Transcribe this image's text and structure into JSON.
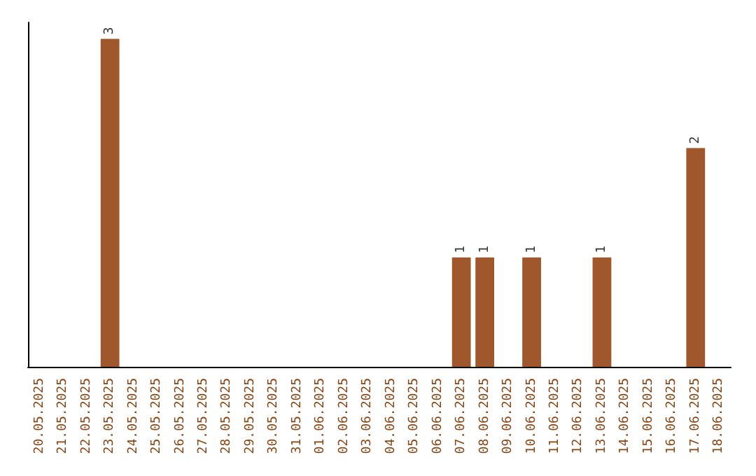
{
  "chart_data": {
    "type": "bar",
    "categories": [
      "20.05.2025",
      "21.05.2025",
      "22.05.2025",
      "23.05.2025",
      "24.05.2025",
      "25.05.2025",
      "26.05.2025",
      "27.05.2025",
      "28.05.2025",
      "29.05.2025",
      "30.05.2025",
      "31.05.2025",
      "01.06.2025",
      "02.06.2025",
      "03.06.2025",
      "04.06.2025",
      "05.06.2025",
      "06.06.2025",
      "07.06.2025",
      "08.06.2025",
      "09.06.2025",
      "10.06.2025",
      "11.06.2025",
      "12.06.2025",
      "13.06.2025",
      "14.06.2025",
      "15.06.2025",
      "16.06.2025",
      "17.06.2025",
      "18.06.2025"
    ],
    "values": [
      0,
      0,
      0,
      3,
      0,
      0,
      0,
      0,
      0,
      0,
      0,
      0,
      0,
      0,
      0,
      0,
      0,
      0,
      1,
      1,
      0,
      1,
      0,
      0,
      1,
      0,
      0,
      0,
      2,
      0
    ],
    "value_labels": [
      null,
      null,
      null,
      "3",
      null,
      null,
      null,
      null,
      null,
      null,
      null,
      null,
      null,
      null,
      null,
      null,
      null,
      null,
      "1",
      "1",
      null,
      "1",
      null,
      null,
      "1",
      null,
      null,
      null,
      "2",
      null
    ],
    "color": "#a0572b",
    "ylim": [
      0,
      3.15
    ],
    "tick_labels": "x",
    "grid": false
  }
}
